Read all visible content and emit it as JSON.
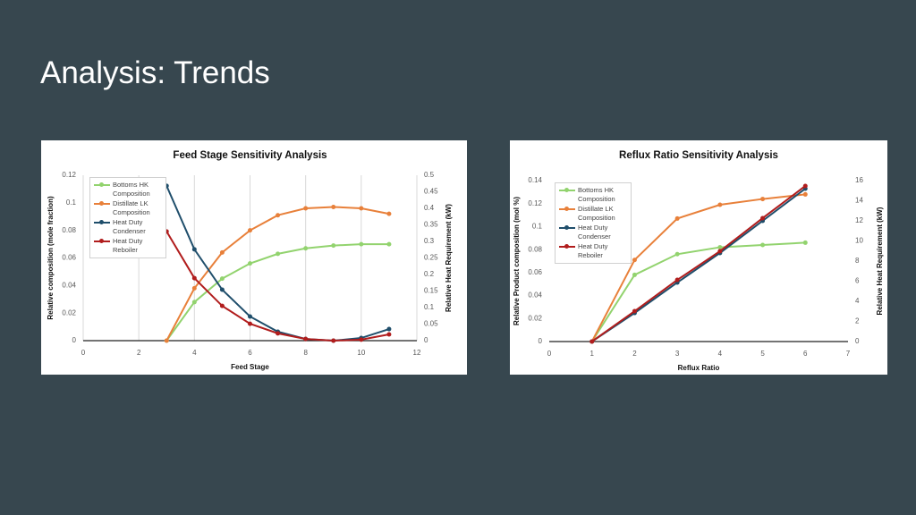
{
  "title": "Analysis: Trends",
  "chart_data": [
    {
      "type": "line",
      "title": "Feed Stage Sensitivity Analysis",
      "x_label": "Feed Stage",
      "y_label": "Relative composition (mole fraction)",
      "y2_label": "Relative Heat Requirement (kW)",
      "x": [
        3,
        4,
        5,
        6,
        7,
        8,
        9,
        10,
        11
      ],
      "xlim": [
        0,
        12
      ],
      "xticks": [
        0,
        2,
        4,
        6,
        8,
        10,
        12
      ],
      "ylim": [
        0,
        0.12
      ],
      "yticks": [
        0,
        0.02,
        0.04,
        0.06,
        0.08,
        0.1,
        0.12
      ],
      "y2lim": [
        0,
        0.5
      ],
      "y2ticks": [
        0,
        0.05,
        0.1,
        0.15,
        0.2,
        0.25,
        0.3,
        0.35,
        0.4,
        0.45,
        0.5
      ],
      "grid": true,
      "legend": "upper left",
      "series": [
        {
          "name": "Bottoms HK Composition",
          "color": "#92d36e",
          "values": [
            0,
            0.028,
            0.045,
            0.056,
            0.063,
            0.067,
            0.069,
            0.07,
            0.07
          ]
        },
        {
          "name": "Distillate LK Composition",
          "color": "#e8803a",
          "values": [
            0,
            0.038,
            0.064,
            0.08,
            0.091,
            0.096,
            0.097,
            0.096,
            0.092
          ]
        },
        {
          "name": "Heat Duty Condenser",
          "color": "#1f4e6b",
          "axis": "y2",
          "values": [
            0.468,
            0.276,
            0.154,
            0.073,
            0.027,
            0.005,
            0,
            0.008,
            0.035
          ]
        },
        {
          "name": "Heat Duty Reboiler",
          "color": "#b11d1d",
          "axis": "y2",
          "values": [
            0.33,
            0.189,
            0.105,
            0.051,
            0.022,
            0.005,
            0,
            0.003,
            0.019
          ]
        }
      ]
    },
    {
      "type": "line",
      "title": "Reflux Ratio Sensitivity Analysis",
      "x_label": "Reflux Ratio",
      "y_label": "Relative Product composition (mol %)",
      "y2_label": "Relative Heat Requirement (kW)",
      "x": [
        1,
        2,
        3,
        4,
        5,
        6
      ],
      "xlim": [
        0,
        7
      ],
      "xticks": [
        0,
        1,
        2,
        3,
        4,
        5,
        6,
        7
      ],
      "ylim": [
        0,
        0.14
      ],
      "yticks": [
        0,
        0.02,
        0.04,
        0.06,
        0.08,
        0.1,
        0.12,
        0.14
      ],
      "y2lim": [
        0,
        16
      ],
      "y2ticks": [
        0,
        2,
        4,
        6,
        8,
        10,
        12,
        14,
        16
      ],
      "grid": false,
      "legend": "upper left",
      "series": [
        {
          "name": "Bottoms HK Composition",
          "color": "#92d36e",
          "values": [
            0,
            0.058,
            0.076,
            0.082,
            0.084,
            0.086
          ]
        },
        {
          "name": "Distillate LK Composition",
          "color": "#e8803a",
          "values": [
            0,
            0.071,
            0.107,
            0.119,
            0.124,
            0.128
          ]
        },
        {
          "name": "Heat Duty Condenser",
          "color": "#1f4e6b",
          "axis": "y2",
          "values": [
            0,
            2.84,
            5.87,
            8.8,
            12.0,
            15.2
          ]
        },
        {
          "name": "Heat Duty Reboiler",
          "color": "#b11d1d",
          "axis": "y2",
          "values": [
            0,
            3.02,
            6.13,
            8.98,
            12.27,
            15.47
          ]
        }
      ]
    }
  ]
}
